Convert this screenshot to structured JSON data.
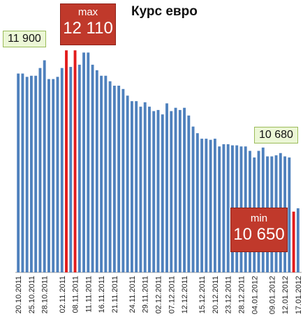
{
  "chart_data": {
    "type": "bar",
    "title": "Курс евро",
    "xlabel": "",
    "ylabel": "",
    "ylim": [
      10100,
      12200
    ],
    "grid": false,
    "legend": "none",
    "colors": {
      "bar": "#4f81bd",
      "highlight": "#e21b1b"
    },
    "tick_labels": [
      "20.10.2011",
      "25.10.2011",
      "28.10.2011",
      "02.11.2011",
      "08.11.2011",
      "11.11.2011",
      "16.11.2011",
      "21.11.2011",
      "24.11.2011",
      "29.11.2011",
      "02.12.2011",
      "07.12.2011",
      "12.12.2011",
      "15.12.2011",
      "20.12.2011",
      "23.12.2011",
      "28.12.2011",
      "04.01.2012",
      "09.01.2012",
      "12.01.2012",
      "17.01.2012"
    ],
    "values": [
      11900,
      11900,
      11870,
      11880,
      11880,
      11950,
      12020,
      11850,
      11850,
      11870,
      11950,
      12110,
      11960,
      12110,
      11980,
      12090,
      12090,
      11980,
      11930,
      11880,
      11880,
      11830,
      11790,
      11790,
      11760,
      11700,
      11650,
      11650,
      11600,
      11640,
      11600,
      11560,
      11570,
      11530,
      11630,
      11560,
      11590,
      11570,
      11590,
      11520,
      11420,
      11360,
      11310,
      11310,
      11300,
      11310,
      11240,
      11260,
      11260,
      11250,
      11250,
      11240,
      11240,
      11200,
      11140,
      11200,
      11230,
      11150,
      11150,
      11160,
      11180,
      11150,
      11140,
      10650,
      10680
    ],
    "highlight_bars": [
      11,
      13,
      63
    ],
    "callouts": {
      "start": "11 900",
      "end": "10 680",
      "max_label": "max",
      "max_value": "12 110",
      "min_label": "min",
      "min_value": "10 650"
    }
  }
}
